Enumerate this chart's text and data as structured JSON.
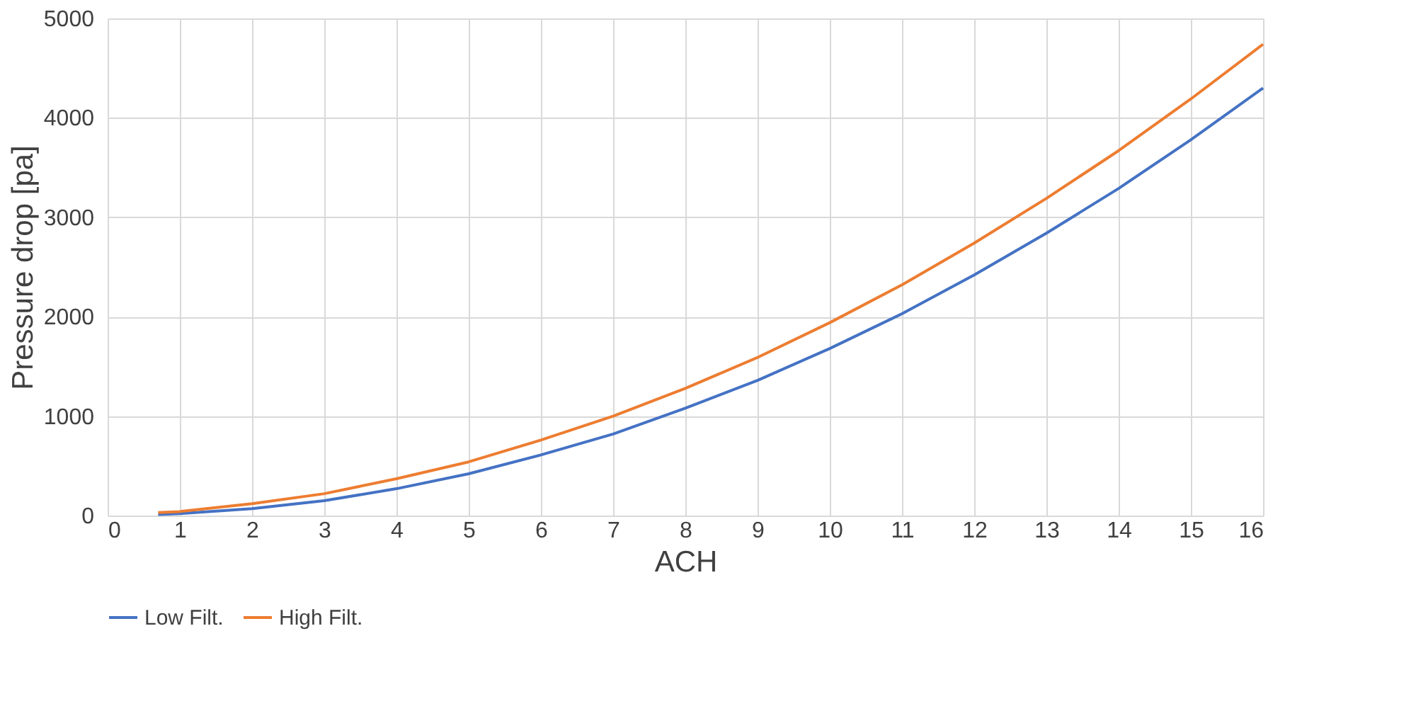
{
  "chart_data": {
    "type": "line",
    "xlabel": "ACH",
    "ylabel": "Pressure drop [pa]",
    "x": [
      0.7,
      1,
      2,
      3,
      4,
      5,
      6,
      7,
      8,
      9,
      10,
      11,
      12,
      13,
      14,
      15,
      16
    ],
    "series": [
      {
        "name": "Low Filt.",
        "color": "#4472c4",
        "values": [
          10,
          20,
          70,
          150,
          270,
          420,
          610,
          820,
          1080,
          1360,
          1680,
          2030,
          2420,
          2840,
          3290,
          3780,
          4300
        ]
      },
      {
        "name": "High Filt.",
        "color": "#ed7d31",
        "values": [
          30,
          40,
          120,
          220,
          370,
          540,
          760,
          1000,
          1280,
          1590,
          1940,
          2320,
          2740,
          3190,
          3670,
          4190,
          4740
        ]
      }
    ],
    "xlim": [
      0,
      16
    ],
    "xticks": [
      0,
      1,
      2,
      3,
      4,
      5,
      6,
      7,
      8,
      9,
      10,
      11,
      12,
      13,
      14,
      15,
      16
    ],
    "ylim": [
      0,
      5000
    ],
    "yticks": [
      0,
      1000,
      2000,
      3000,
      4000,
      5000
    ],
    "grid": true,
    "legend": "bottom",
    "marker": "none",
    "line_style": "solid"
  }
}
